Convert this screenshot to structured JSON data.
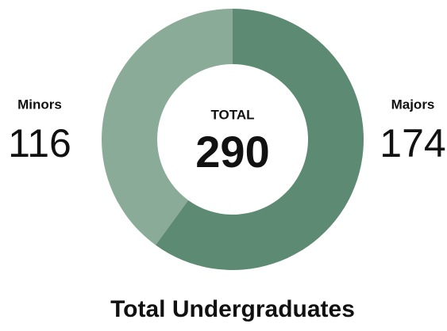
{
  "chart_data": {
    "type": "donut",
    "title": "Total Undergraduates",
    "center_label": "TOTAL",
    "center_value": 290,
    "categories": [
      "Majors",
      "Minors"
    ],
    "values": [
      174,
      116
    ],
    "colors": [
      "#5d8a72",
      "#8bab99"
    ]
  }
}
